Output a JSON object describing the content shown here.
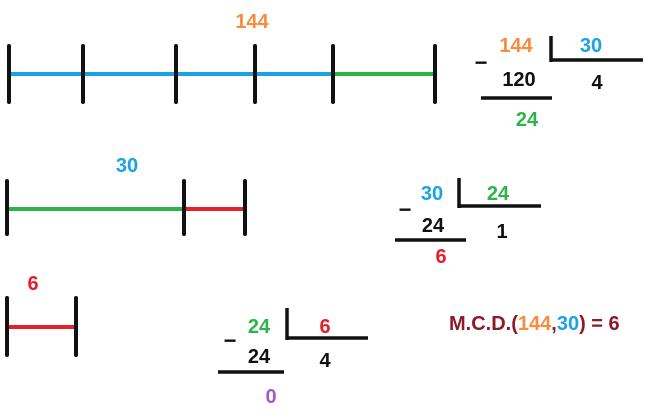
{
  "colors": {
    "orange": "#f58d3d",
    "blue": "#1aa3e3",
    "green": "#2db34a",
    "red": "#e51f2b",
    "purple": "#a35cc9",
    "maroon": "#8b1a2b",
    "black": "#111111"
  },
  "segment1": {
    "label": "144",
    "whole": 144,
    "unit": 30,
    "parts": 4,
    "remainder": 24
  },
  "segment2": {
    "label": "30",
    "whole": 30,
    "unit": 24,
    "parts": 1,
    "remainder": 6
  },
  "segment3": {
    "label": "6",
    "whole": 6
  },
  "division1": {
    "dividend": "144",
    "divisor": "30",
    "subtrahend": "120",
    "quotient": "4",
    "remainder": "24",
    "minus": "−"
  },
  "division2": {
    "dividend": "30",
    "divisor": "24",
    "subtrahend": "24",
    "quotient": "1",
    "remainder": "6",
    "minus": "−"
  },
  "division3": {
    "dividend": "24",
    "divisor": "6",
    "subtrahend": "24",
    "quotient": "4",
    "remainder": "0",
    "minus": "−"
  },
  "result": {
    "prefix": "M.C.D.(",
    "a": "144",
    "comma": ",",
    "b": "30",
    "suffix": ") = 6"
  }
}
